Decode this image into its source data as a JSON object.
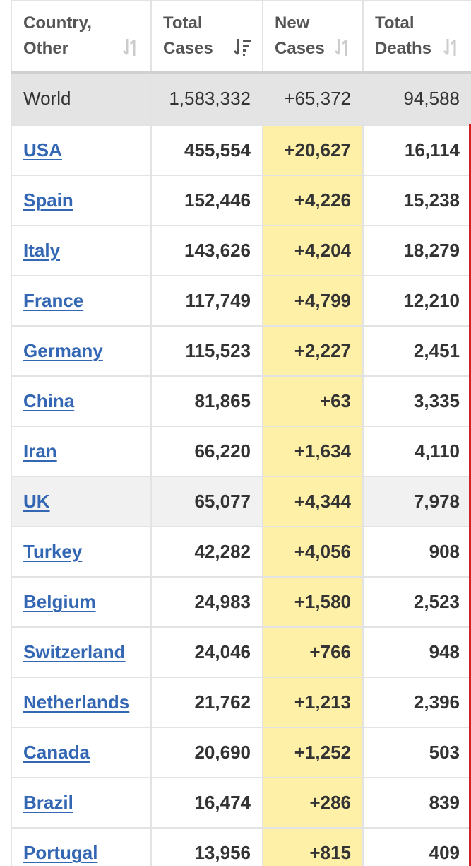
{
  "header": {
    "columns": [
      {
        "label": "Country,\nOther",
        "sort_icon": "sort-both-icon"
      },
      {
        "label": "Total\nCases",
        "sort_icon": "sort-descending-icon"
      },
      {
        "label": "New\nCases",
        "sort_icon": "sort-both-icon"
      },
      {
        "label": "Total\nDeaths",
        "sort_icon": "sort-both-icon"
      }
    ]
  },
  "world": {
    "country": "World",
    "total_cases": "1,583,332",
    "new_cases": "+65,372",
    "total_deaths": "94,588"
  },
  "rows": [
    {
      "country": "USA",
      "total_cases": "455,554",
      "new_cases": "+20,627",
      "total_deaths": "16,114"
    },
    {
      "country": "Spain",
      "total_cases": "152,446",
      "new_cases": "+4,226",
      "total_deaths": "15,238"
    },
    {
      "country": "Italy",
      "total_cases": "143,626",
      "new_cases": "+4,204",
      "total_deaths": "18,279"
    },
    {
      "country": "France",
      "total_cases": "117,749",
      "new_cases": "+4,799",
      "total_deaths": "12,210"
    },
    {
      "country": "Germany",
      "total_cases": "115,523",
      "new_cases": "+2,227",
      "total_deaths": "2,451"
    },
    {
      "country": "China",
      "total_cases": "81,865",
      "new_cases": "+63",
      "total_deaths": "3,335"
    },
    {
      "country": "Iran",
      "total_cases": "66,220",
      "new_cases": "+1,634",
      "total_deaths": "4,110"
    },
    {
      "country": "UK",
      "total_cases": "65,077",
      "new_cases": "+4,344",
      "total_deaths": "7,978"
    },
    {
      "country": "Turkey",
      "total_cases": "42,282",
      "new_cases": "+4,056",
      "total_deaths": "908"
    },
    {
      "country": "Belgium",
      "total_cases": "24,983",
      "new_cases": "+1,580",
      "total_deaths": "2,523"
    },
    {
      "country": "Switzerland",
      "total_cases": "24,046",
      "new_cases": "+766",
      "total_deaths": "948"
    },
    {
      "country": "Netherlands",
      "total_cases": "21,762",
      "new_cases": "+1,213",
      "total_deaths": "2,396"
    },
    {
      "country": "Canada",
      "total_cases": "20,690",
      "new_cases": "+1,252",
      "total_deaths": "503"
    },
    {
      "country": "Brazil",
      "total_cases": "16,474",
      "new_cases": "+286",
      "total_deaths": "839"
    },
    {
      "country": "Portugal",
      "total_cases": "13,956",
      "new_cases": "+815",
      "total_deaths": "409"
    }
  ],
  "colors": {
    "link": "#3366b3",
    "new_cases_bg": "#fff0a8",
    "world_bg": "#e4e4e4",
    "accent_red": "#d42020"
  }
}
